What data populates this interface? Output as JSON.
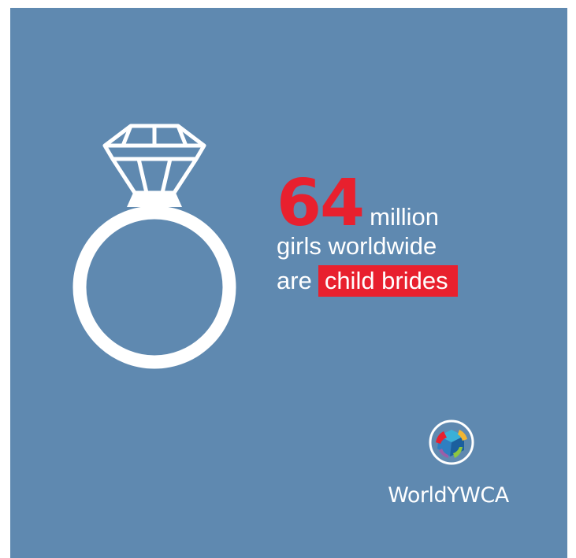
{
  "infographic": {
    "stat_number": "64",
    "stat_unit": "million",
    "line2": "girls worldwide",
    "line3_prefix": "are",
    "highlight": "child brides"
  },
  "logo": {
    "text": "WorldYWCA",
    "icon": "ywca-globe-emblem-icon"
  },
  "icons": {
    "ring": "diamond-ring-icon"
  },
  "colors": {
    "background": "#5f89b0",
    "accent_red": "#e8202e",
    "text": "#ffffff"
  }
}
